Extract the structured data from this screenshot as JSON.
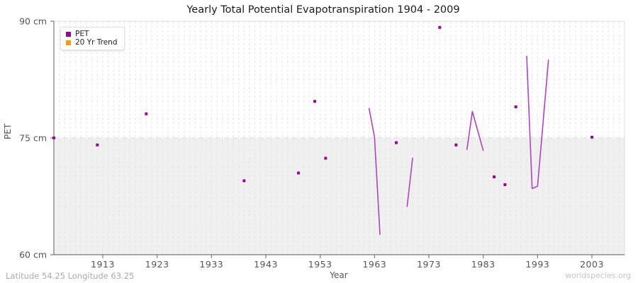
{
  "header": {
    "title": "Yearly Total Potential Evapotranspiration 1904 - 2009"
  },
  "axis_titles": {
    "y": "PET",
    "x": "Year"
  },
  "footer": {
    "location": "Latitude 54.25 Longitude 63.25",
    "watermark": "worldspecies.org"
  },
  "legend": [
    {
      "label": "PET",
      "color": "#990099"
    },
    {
      "label": "20 Yr Trend",
      "color": "#ff9900"
    }
  ],
  "chart_data": {
    "type": "scatter",
    "title": "Yearly Total Potential Evapotranspiration 1904 - 2009",
    "xlabel": "Year",
    "ylabel": "PET",
    "xlim": [
      1904,
      2009
    ],
    "ylim": [
      60,
      90
    ],
    "x_ticks": [
      1913,
      1923,
      1933,
      1943,
      1953,
      1963,
      1973,
      1983,
      1993,
      2003
    ],
    "y_ticks": [
      {
        "value": 90,
        "label": "90 cm"
      },
      {
        "value": 75,
        "label": "75 cm"
      },
      {
        "value": 60,
        "label": "60 cm"
      }
    ],
    "grid": {
      "vertical_dashed_per_year": true,
      "horizontal_dashed_at": 75,
      "shaded_band": [
        60,
        75
      ]
    },
    "legend_position": "top-left",
    "colors": {
      "band": "#f0f0f0",
      "grid": "#e3e3e3",
      "dash_75_line": "#d9d9d9",
      "border": "#dcdcdc",
      "axis": "#777777",
      "tick_text": "#555555"
    },
    "series": [
      {
        "name": "PET",
        "marker_color": "#990099",
        "line_color": "#aa46be",
        "points": [
          [
            1904,
            75.0
          ],
          [
            1912,
            74.1
          ],
          [
            1921,
            78.1
          ],
          [
            1939,
            69.5
          ],
          [
            1949,
            70.5
          ],
          [
            1952,
            79.7
          ],
          [
            1954,
            72.4
          ],
          [
            1967,
            74.4
          ],
          [
            1975,
            89.2
          ],
          [
            1978,
            74.1
          ],
          [
            1985,
            70.0
          ],
          [
            1987,
            69.0
          ],
          [
            1989,
            79.0
          ],
          [
            2003,
            75.1
          ]
        ],
        "segments": [
          [
            [
              1962,
              78.8
            ],
            [
              1963,
              75.1
            ],
            [
              1964,
              62.6
            ]
          ],
          [
            [
              1969,
              66.2
            ],
            [
              1970,
              72.4
            ]
          ],
          [
            [
              1980,
              73.5
            ],
            [
              1981,
              78.4
            ],
            [
              1983,
              73.4
            ]
          ],
          [
            [
              1991,
              85.5
            ],
            [
              1992,
              68.5
            ],
            [
              1993,
              68.8
            ],
            [
              1995,
              85.0
            ]
          ]
        ]
      },
      {
        "name": "20 Yr Trend",
        "marker_color": "#ff9900",
        "line_color": "#ff9900",
        "points": [],
        "segments": []
      }
    ]
  }
}
